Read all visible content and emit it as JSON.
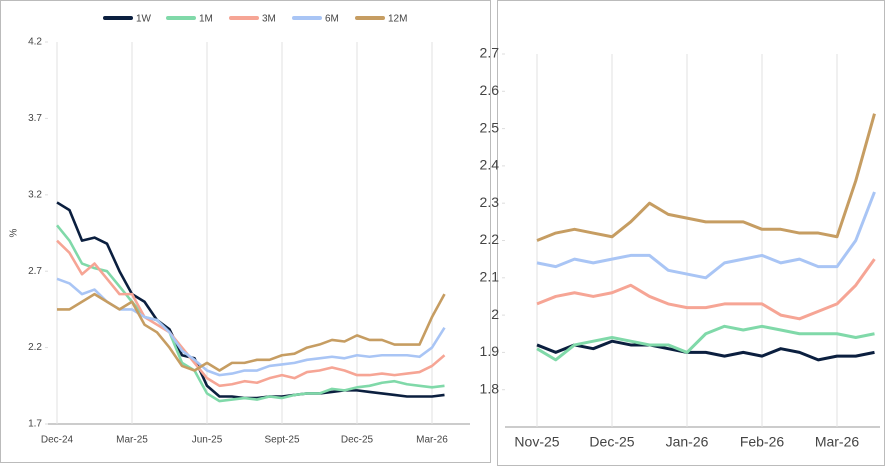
{
  "chart_data": [
    {
      "type": "line",
      "ylabel": "%",
      "legend": "top",
      "categories": [
        "Dec-24",
        null,
        null,
        null,
        null,
        null,
        "Mar-25",
        null,
        null,
        null,
        null,
        null,
        "Jun-25",
        null,
        null,
        null,
        null,
        null,
        "Sept-25",
        null,
        null,
        null,
        null,
        null,
        "Dec-25",
        null,
        null,
        null,
        null,
        null,
        "Mar-26",
        null
      ],
      "ylim": [
        1.7,
        4.2
      ],
      "yticks": [
        1.7,
        2.2,
        2.7,
        3.2,
        3.7,
        4.2
      ],
      "series": [
        {
          "name": "1W",
          "color": "#0b1f3f",
          "values": [
            3.15,
            3.1,
            2.9,
            2.92,
            2.88,
            2.7,
            2.55,
            2.5,
            2.38,
            2.32,
            2.15,
            2.13,
            1.95,
            1.88,
            1.88,
            1.87,
            1.87,
            1.88,
            1.88,
            1.89,
            1.9,
            1.9,
            1.91,
            1.92,
            1.92,
            1.91,
            1.9,
            1.89,
            1.88,
            1.88,
            1.88,
            1.89
          ]
        },
        {
          "name": "1M",
          "color": "#80d9a9",
          "values": [
            3.0,
            2.9,
            2.75,
            2.72,
            2.7,
            2.6,
            2.5,
            2.4,
            2.38,
            2.3,
            2.1,
            2.05,
            1.9,
            1.85,
            1.86,
            1.87,
            1.86,
            1.88,
            1.87,
            1.89,
            1.9,
            1.9,
            1.93,
            1.92,
            1.94,
            1.95,
            1.97,
            1.98,
            1.96,
            1.95,
            1.94,
            1.95
          ]
        },
        {
          "name": "3M",
          "color": "#f6a595",
          "values": [
            2.9,
            2.82,
            2.68,
            2.75,
            2.65,
            2.55,
            2.55,
            2.4,
            2.35,
            2.3,
            2.2,
            2.1,
            2.0,
            1.95,
            1.96,
            1.98,
            1.97,
            2.0,
            2.02,
            2.0,
            2.04,
            2.05,
            2.07,
            2.05,
            2.02,
            2.02,
            2.03,
            2.02,
            2.03,
            2.04,
            2.08,
            2.15
          ]
        },
        {
          "name": "6M",
          "color": "#a9c5f5",
          "values": [
            2.65,
            2.62,
            2.55,
            2.58,
            2.5,
            2.45,
            2.45,
            2.4,
            2.38,
            2.3,
            2.18,
            2.12,
            2.05,
            2.02,
            2.03,
            2.05,
            2.05,
            2.08,
            2.09,
            2.1,
            2.12,
            2.13,
            2.14,
            2.13,
            2.15,
            2.14,
            2.15,
            2.15,
            2.15,
            2.14,
            2.2,
            2.33
          ]
        },
        {
          "name": "12M",
          "color": "#c69d62",
          "values": [
            2.45,
            2.45,
            2.5,
            2.55,
            2.5,
            2.45,
            2.5,
            2.35,
            2.3,
            2.2,
            2.08,
            2.05,
            2.1,
            2.05,
            2.1,
            2.1,
            2.12,
            2.12,
            2.15,
            2.16,
            2.2,
            2.22,
            2.25,
            2.24,
            2.28,
            2.25,
            2.25,
            2.22,
            2.22,
            2.22,
            2.4,
            2.55
          ]
        }
      ]
    },
    {
      "type": "line",
      "categories": [
        "Nov-25",
        null,
        null,
        null,
        "Dec-25",
        null,
        null,
        null,
        "Jan-26",
        null,
        null,
        null,
        "Feb-26",
        null,
        null,
        null,
        "Mar-26",
        null,
        null
      ],
      "ylim": [
        1.7,
        2.7
      ],
      "yticks": [
        1.8,
        1.9,
        2,
        2.1,
        2.2,
        2.3,
        2.4,
        2.5,
        2.6,
        2.7
      ],
      "series": [
        {
          "color": "#0b1f3f",
          "values": [
            1.92,
            1.9,
            1.92,
            1.91,
            1.93,
            1.92,
            1.92,
            1.91,
            1.9,
            1.9,
            1.89,
            1.9,
            1.89,
            1.91,
            1.9,
            1.88,
            1.89,
            1.89,
            1.9
          ]
        },
        {
          "color": "#80d9a9",
          "values": [
            1.91,
            1.88,
            1.92,
            1.93,
            1.94,
            1.93,
            1.92,
            1.92,
            1.9,
            1.95,
            1.97,
            1.96,
            1.97,
            1.96,
            1.95,
            1.95,
            1.95,
            1.94,
            1.95
          ]
        },
        {
          "color": "#f6a595",
          "values": [
            2.03,
            2.05,
            2.06,
            2.05,
            2.06,
            2.08,
            2.05,
            2.03,
            2.02,
            2.02,
            2.03,
            2.03,
            2.03,
            2.0,
            1.99,
            2.01,
            2.03,
            2.08,
            2.15
          ]
        },
        {
          "color": "#a9c5f5",
          "values": [
            2.14,
            2.13,
            2.15,
            2.14,
            2.15,
            2.16,
            2.16,
            2.12,
            2.11,
            2.1,
            2.14,
            2.15,
            2.16,
            2.14,
            2.15,
            2.13,
            2.13,
            2.2,
            2.33
          ]
        },
        {
          "color": "#c69d62",
          "values": [
            2.2,
            2.22,
            2.23,
            2.22,
            2.21,
            2.25,
            2.3,
            2.27,
            2.26,
            2.25,
            2.25,
            2.25,
            2.23,
            2.23,
            2.22,
            2.22,
            2.21,
            2.36,
            2.54
          ]
        }
      ]
    }
  ]
}
